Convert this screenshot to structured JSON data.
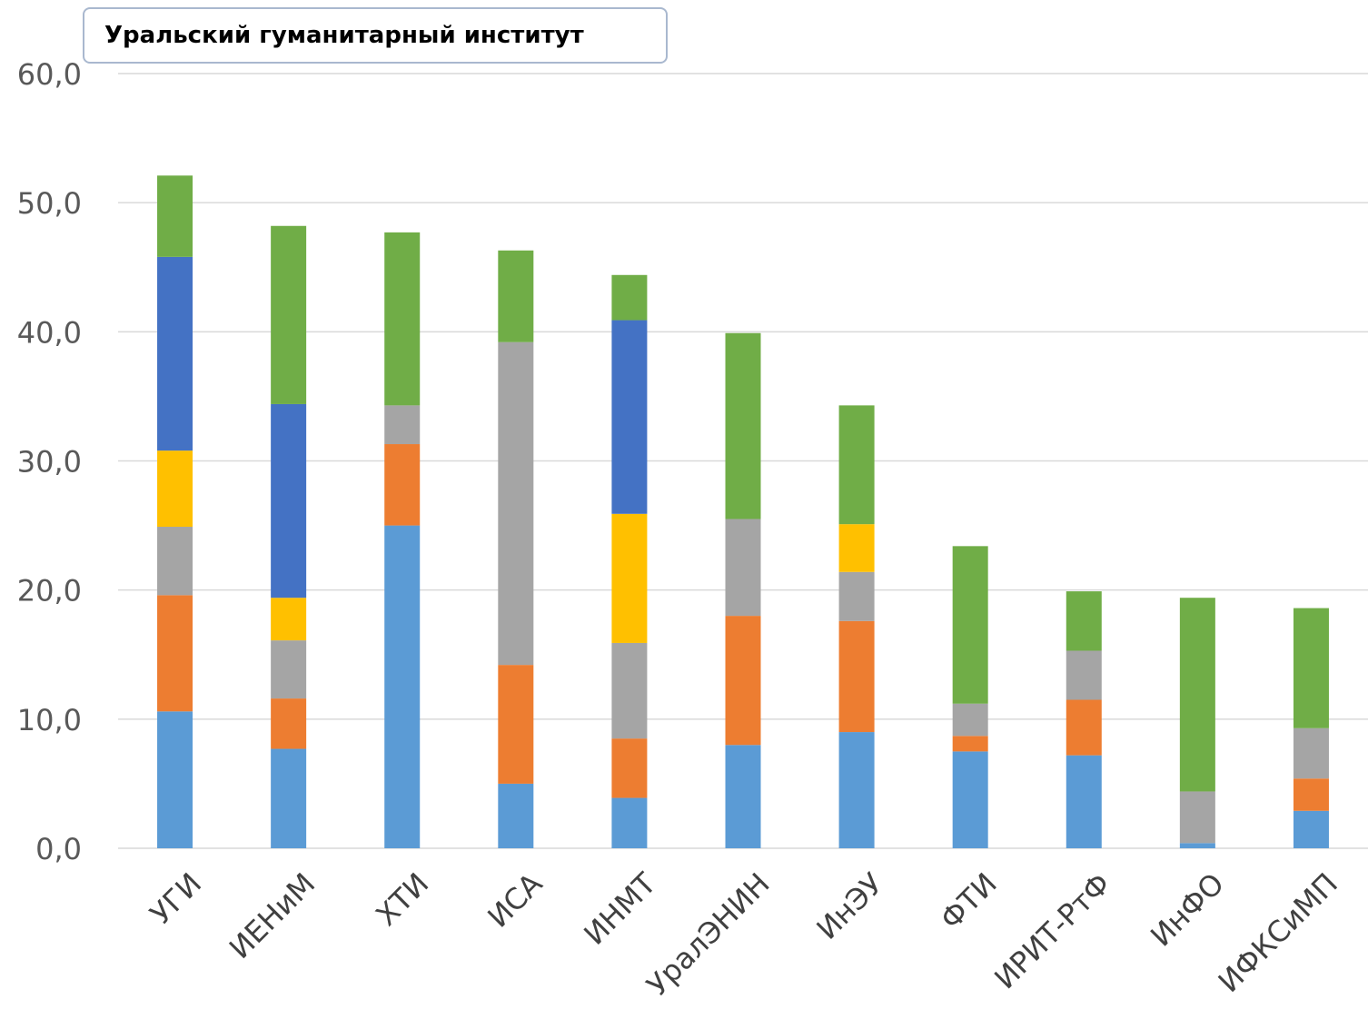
{
  "chart_data": {
    "type": "bar",
    "stacked": true,
    "annotation": "Уральский гуманитарный институт",
    "categories": [
      "УГИ",
      "ИЕНиМ",
      "ХТИ",
      "ИСА",
      "ИНМТ",
      "УралЭНИН",
      "ИнЭУ",
      "ФТИ",
      "ИРИТ-РтФ",
      "ИнФО",
      "ИФКСиМП"
    ],
    "ylim": [
      0,
      60
    ],
    "yticks": [
      "0,0",
      "10,0",
      "20,0",
      "30,0",
      "40,0",
      "50,0",
      "60,0"
    ],
    "grid": true,
    "legend": "none",
    "series": [
      {
        "color": "#5b9bd5",
        "values": [
          10.6,
          7.7,
          25.0,
          5.0,
          3.9,
          8.0,
          9.0,
          7.5,
          7.2,
          0.4,
          2.9
        ]
      },
      {
        "color": "#ed7d31",
        "values": [
          9.0,
          3.9,
          6.3,
          9.2,
          4.6,
          10.0,
          8.6,
          1.2,
          4.3,
          0.0,
          2.5
        ]
      },
      {
        "color": "#a5a5a5",
        "values": [
          5.3,
          4.5,
          3.0,
          25.0,
          7.4,
          7.5,
          3.8,
          2.5,
          3.8,
          4.0,
          3.9
        ]
      },
      {
        "color": "#ffc000",
        "values": [
          5.9,
          3.3,
          0.0,
          0.0,
          10.0,
          0.0,
          3.7,
          0.0,
          0.0,
          0.0,
          0.0
        ]
      },
      {
        "color": "#4472c4",
        "values": [
          15.0,
          15.0,
          0.0,
          0.0,
          15.0,
          0.0,
          0.0,
          0.0,
          0.0,
          0.0,
          0.0
        ]
      },
      {
        "color": "#70ad47",
        "values": [
          6.3,
          13.8,
          13.4,
          7.1,
          3.5,
          14.4,
          9.2,
          12.2,
          4.6,
          15.0,
          9.3
        ]
      }
    ]
  }
}
